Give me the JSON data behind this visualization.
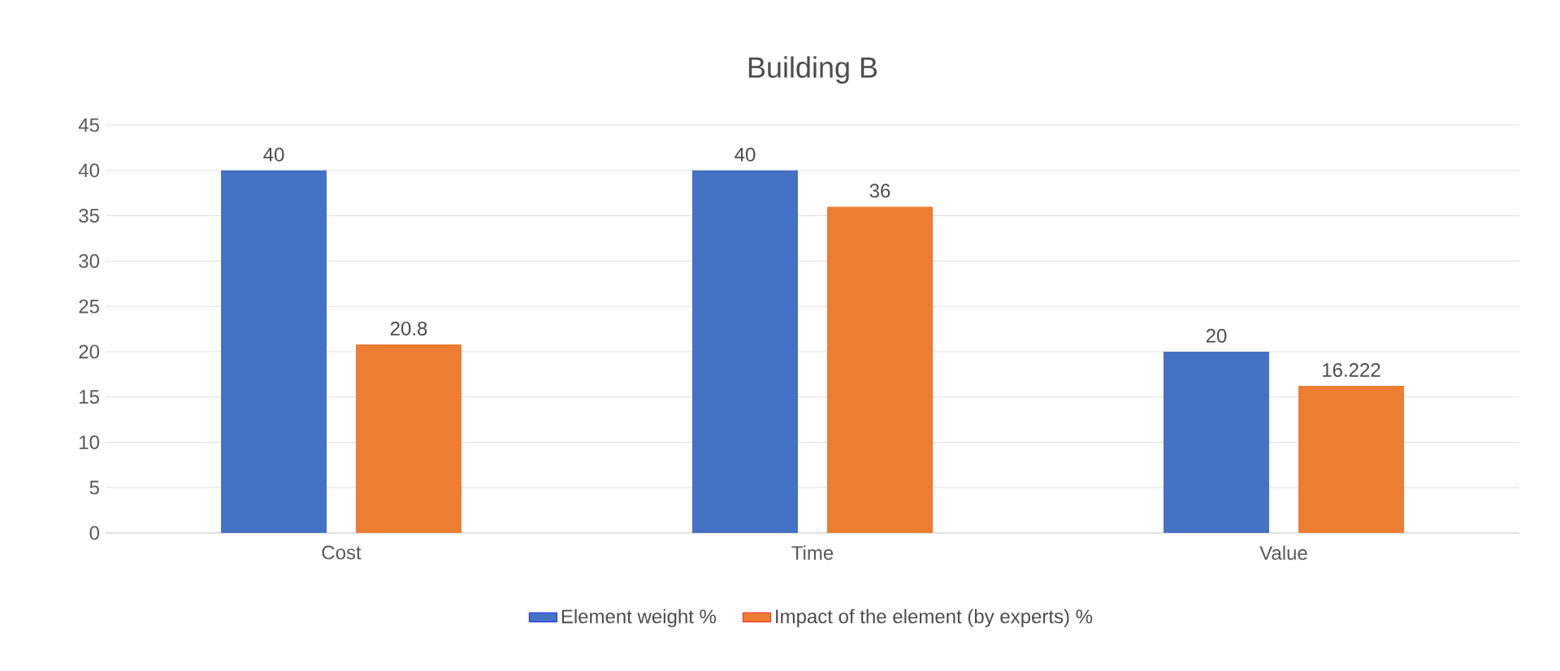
{
  "chart_data": {
    "type": "bar",
    "title": "Building B",
    "categories": [
      "Cost",
      "Time",
      "Value"
    ],
    "series": [
      {
        "name": "Element weight %",
        "color": "#4472c4",
        "values": [
          40,
          40,
          20
        ]
      },
      {
        "name": "Impact of the element (by experts) %",
        "color": "#ed7d31",
        "values": [
          20.8,
          36,
          16.222
        ]
      }
    ],
    "ylim": [
      0,
      45
    ],
    "yticks": [
      0,
      5,
      10,
      15,
      20,
      25,
      30,
      35,
      40,
      45
    ],
    "grid": "y",
    "legend": "bottom",
    "data_labels": true
  }
}
